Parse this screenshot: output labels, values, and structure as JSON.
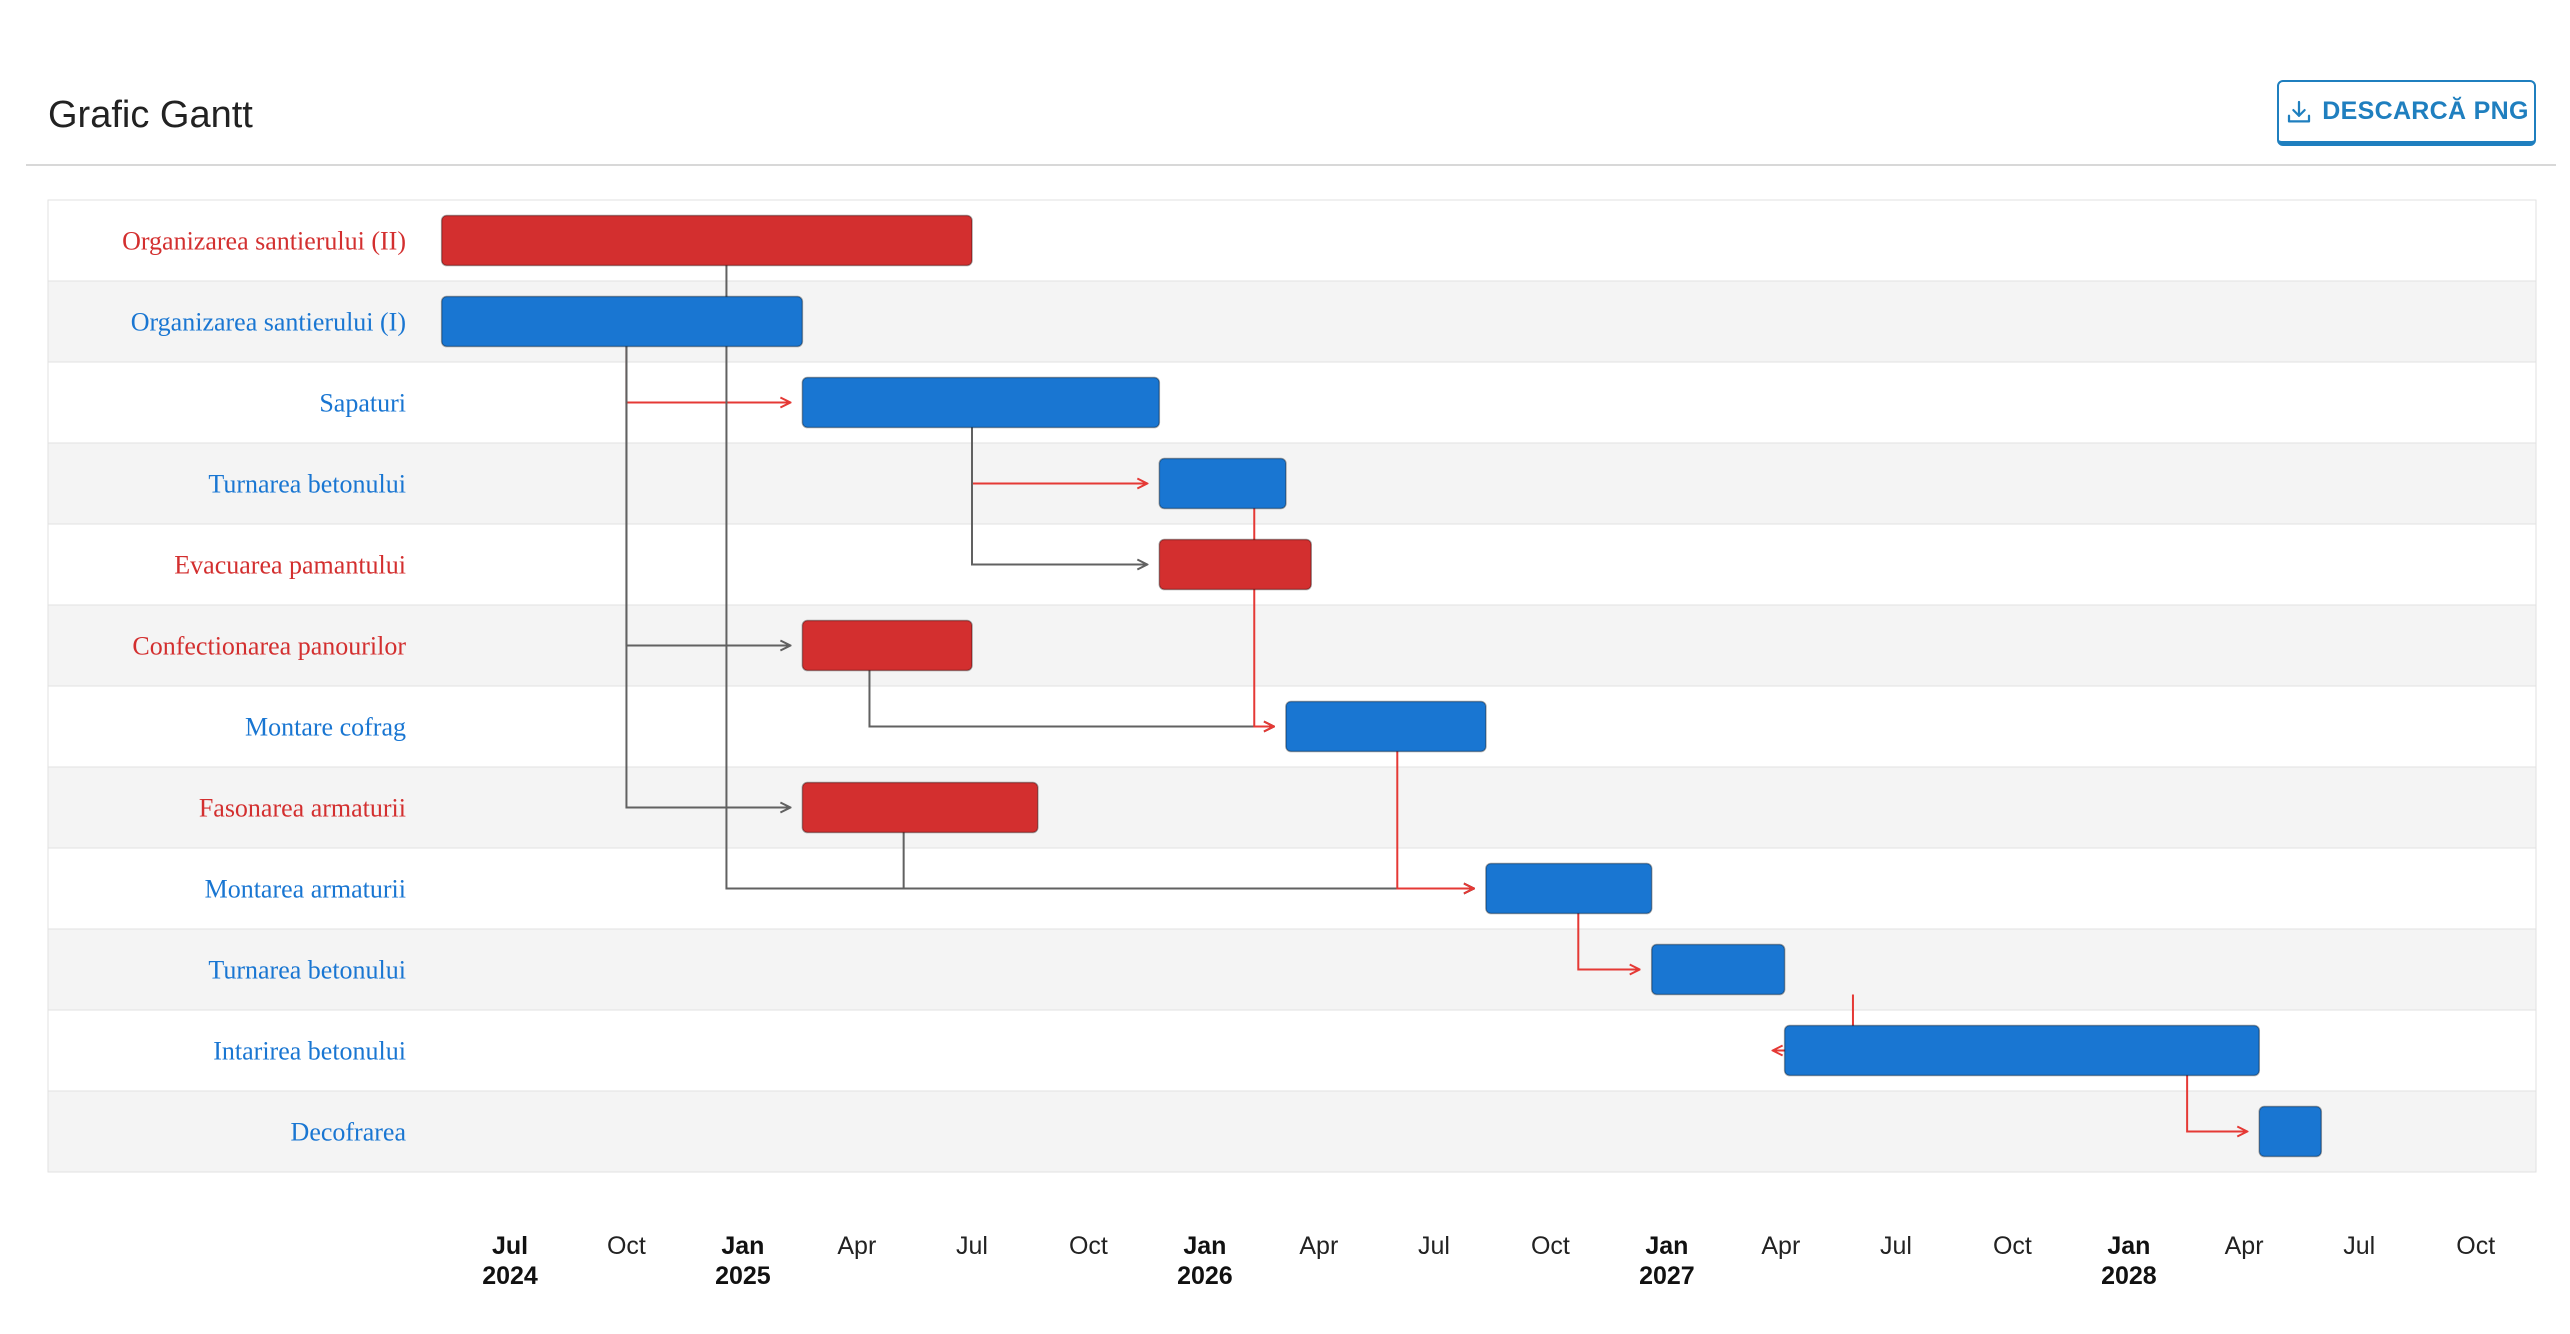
{
  "header": {
    "title": "Grafic Gantt",
    "download_label": "DESCARCĂ PNG",
    "download_icon": "download-icon"
  },
  "colors": {
    "critical": "#d32f2f",
    "normal": "#1976d2",
    "critical_link": "#e53935",
    "normal_link": "#616161",
    "row_alt": "#f4f4f4"
  },
  "chart_data": {
    "type": "gantt",
    "title": "Grafic Gantt",
    "x_range": [
      "2024-05-01",
      "2028-11-01"
    ],
    "ticks": [
      {
        "date": "2024-07-01",
        "label": "Jul",
        "year": "2024",
        "major": true
      },
      {
        "date": "2024-10-01",
        "label": "Oct",
        "major": false
      },
      {
        "date": "2025-01-01",
        "label": "Jan",
        "year": "2025",
        "major": true
      },
      {
        "date": "2025-04-01",
        "label": "Apr",
        "major": false
      },
      {
        "date": "2025-07-01",
        "label": "Jul",
        "major": false
      },
      {
        "date": "2025-10-01",
        "label": "Oct",
        "major": false
      },
      {
        "date": "2026-01-01",
        "label": "Jan",
        "year": "2026",
        "major": true
      },
      {
        "date": "2026-04-01",
        "label": "Apr",
        "major": false
      },
      {
        "date": "2026-07-01",
        "label": "Jul",
        "major": false
      },
      {
        "date": "2026-10-01",
        "label": "Oct",
        "major": false
      },
      {
        "date": "2027-01-01",
        "label": "Jan",
        "year": "2027",
        "major": true
      },
      {
        "date": "2027-04-01",
        "label": "Apr",
        "major": false
      },
      {
        "date": "2027-07-01",
        "label": "Jul",
        "major": false
      },
      {
        "date": "2027-10-01",
        "label": "Oct",
        "major": false
      },
      {
        "date": "2028-01-01",
        "label": "Jan",
        "year": "2028",
        "major": true
      },
      {
        "date": "2028-04-01",
        "label": "Apr",
        "major": false
      },
      {
        "date": "2028-07-01",
        "label": "Jul",
        "major": false
      },
      {
        "date": "2028-10-01",
        "label": "Oct",
        "major": false
      }
    ],
    "tasks": [
      {
        "id": "t1",
        "name": "Organizarea santierului (II)",
        "start": "2024-05-08",
        "end": "2025-07-01",
        "critical": true
      },
      {
        "id": "t2",
        "name": "Organizarea santierului (I)",
        "start": "2024-05-08",
        "end": "2025-02-17",
        "critical": false
      },
      {
        "id": "t3",
        "name": "Sapaturi",
        "start": "2025-02-17",
        "end": "2025-11-26",
        "critical": false
      },
      {
        "id": "t4",
        "name": "Turnarea betonului",
        "start": "2025-11-26",
        "end": "2026-03-06",
        "critical": false
      },
      {
        "id": "t5",
        "name": "Evacuarea pamantului",
        "start": "2025-11-26",
        "end": "2026-03-26",
        "critical": true
      },
      {
        "id": "t6",
        "name": "Confectionarea panourilor",
        "start": "2025-02-17",
        "end": "2025-07-01",
        "critical": true
      },
      {
        "id": "t7",
        "name": "Montare cofrag",
        "start": "2026-03-06",
        "end": "2026-08-11",
        "critical": false
      },
      {
        "id": "t8",
        "name": "Fasonarea armaturii",
        "start": "2025-02-17",
        "end": "2025-08-22",
        "critical": true
      },
      {
        "id": "t9",
        "name": "Montarea armaturii",
        "start": "2026-08-11",
        "end": "2026-12-20",
        "critical": false
      },
      {
        "id": "t10",
        "name": "Turnarea betonului",
        "start": "2026-12-20",
        "end": "2027-04-04",
        "critical": false
      },
      {
        "id": "t11",
        "name": "Intarirea betonului",
        "start": "2027-04-04",
        "end": "2028-04-13",
        "critical": false
      },
      {
        "id": "t12",
        "name": "Decofrarea",
        "start": "2028-04-13",
        "end": "2028-06-01",
        "critical": false
      }
    ],
    "links": [
      {
        "from": "t2",
        "to": "t3",
        "critical": true,
        "depart": "2024-10-01"
      },
      {
        "from": "t3",
        "to": "t4",
        "critical": true,
        "depart": "2025-07-01"
      },
      {
        "from": "t3",
        "to": "t5",
        "critical": false,
        "depart": "2025-07-01"
      },
      {
        "from": "t2",
        "to": "t6",
        "critical": false,
        "depart": "2024-10-01"
      },
      {
        "from": "t6",
        "to": "t7",
        "critical": false,
        "depart": "2025-04-11"
      },
      {
        "from": "t4",
        "to": "t7",
        "critical": true,
        "depart": "2026-02-09"
      },
      {
        "from": "t2",
        "to": "t8",
        "critical": false,
        "depart": "2024-10-01"
      },
      {
        "from": "t1",
        "to": "t9",
        "critical": false,
        "depart": "2024-12-19"
      },
      {
        "from": "t8",
        "to": "t9",
        "critical": false,
        "depart": "2025-05-08"
      },
      {
        "from": "t7",
        "to": "t9",
        "critical": true,
        "depart": "2026-06-02"
      },
      {
        "from": "t9",
        "to": "t10",
        "critical": true,
        "depart": "2026-10-23"
      },
      {
        "from": "t10",
        "to": "t11",
        "critical": true,
        "depart": "2027-05-28"
      },
      {
        "from": "t11",
        "to": "t12",
        "critical": true,
        "depart": "2028-02-16"
      }
    ]
  }
}
